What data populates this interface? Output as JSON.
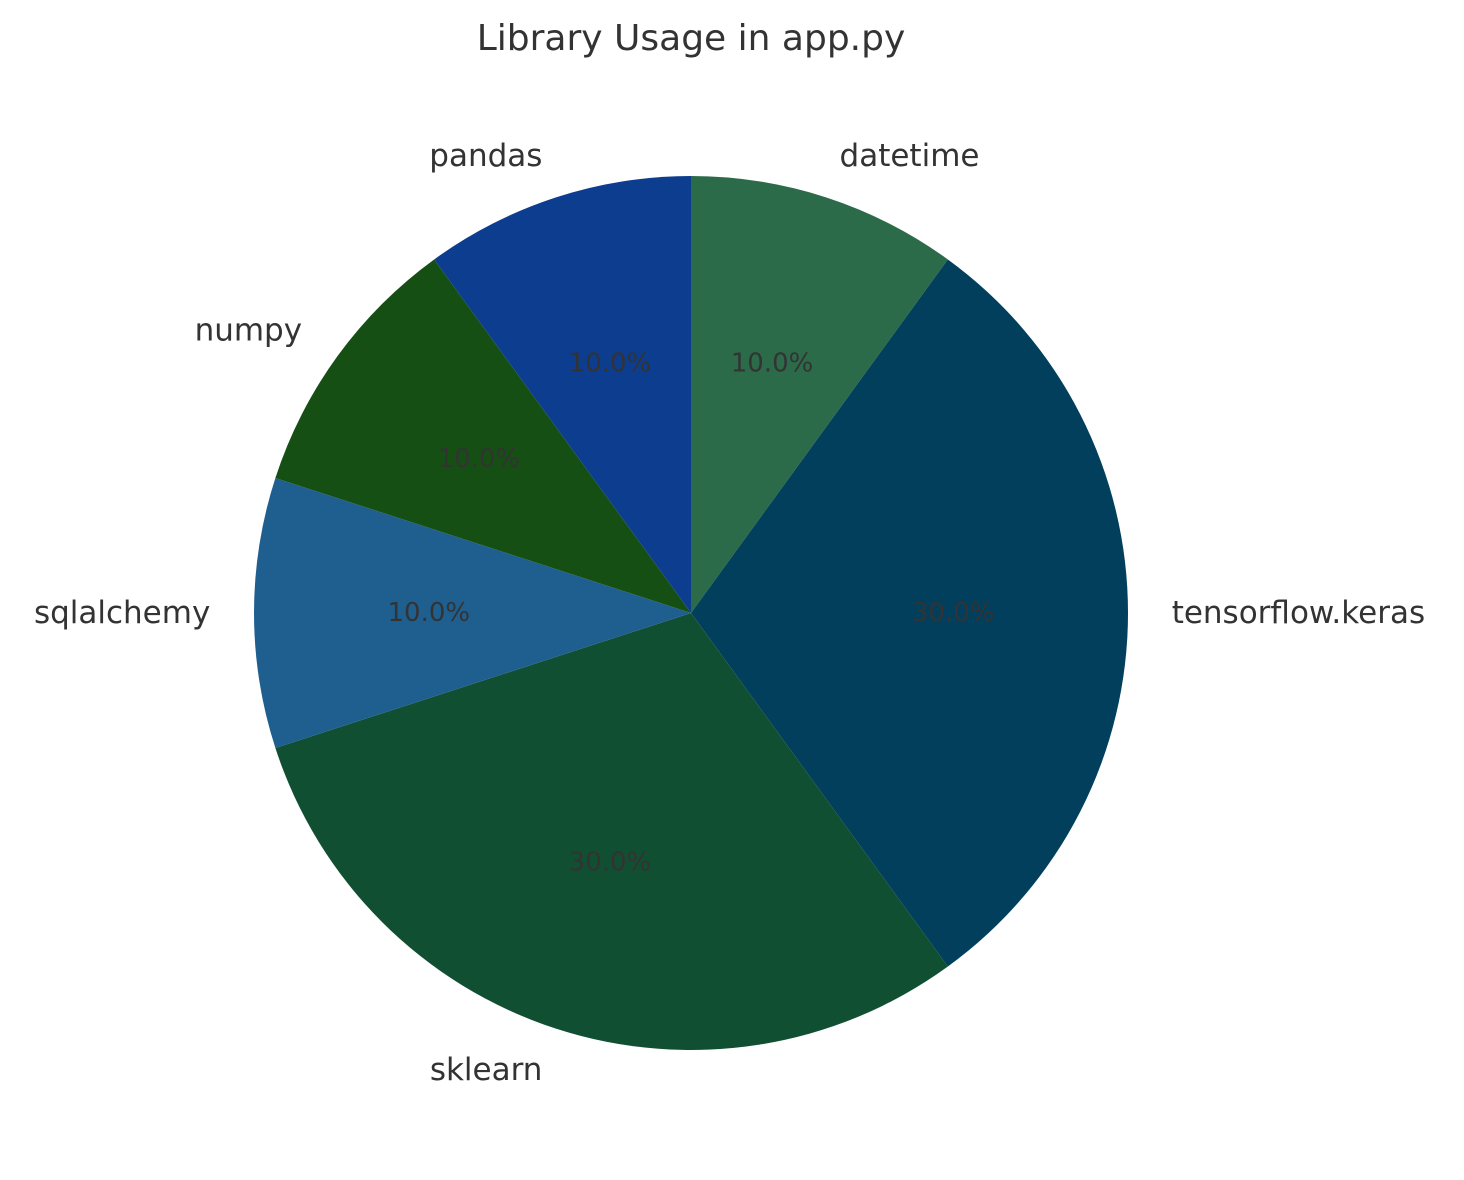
{
  "chart_data": {
    "type": "pie",
    "title": "Library Usage in app.py",
    "slices": [
      {
        "label": "datetime",
        "value": 10.0,
        "pct_label": "10.0%",
        "color": "#2c6b4a"
      },
      {
        "label": "tensorflow.keras",
        "value": 30.0,
        "pct_label": "30.0%",
        "color": "#013f5c"
      },
      {
        "label": "sklearn",
        "value": 30.0,
        "pct_label": "30.0%",
        "color": "#114f33"
      },
      {
        "label": "sqlalchemy",
        "value": 10.0,
        "pct_label": "10.0%",
        "color": "#1f5f8f"
      },
      {
        "label": "numpy",
        "value": 10.0,
        "pct_label": "10.0%",
        "color": "#154f14"
      },
      {
        "label": "pandas",
        "value": 10.0,
        "pct_label": "10.0%",
        "color": "#0d3d8f"
      }
    ],
    "start_angle": "top, clockwise",
    "legend": "none"
  }
}
